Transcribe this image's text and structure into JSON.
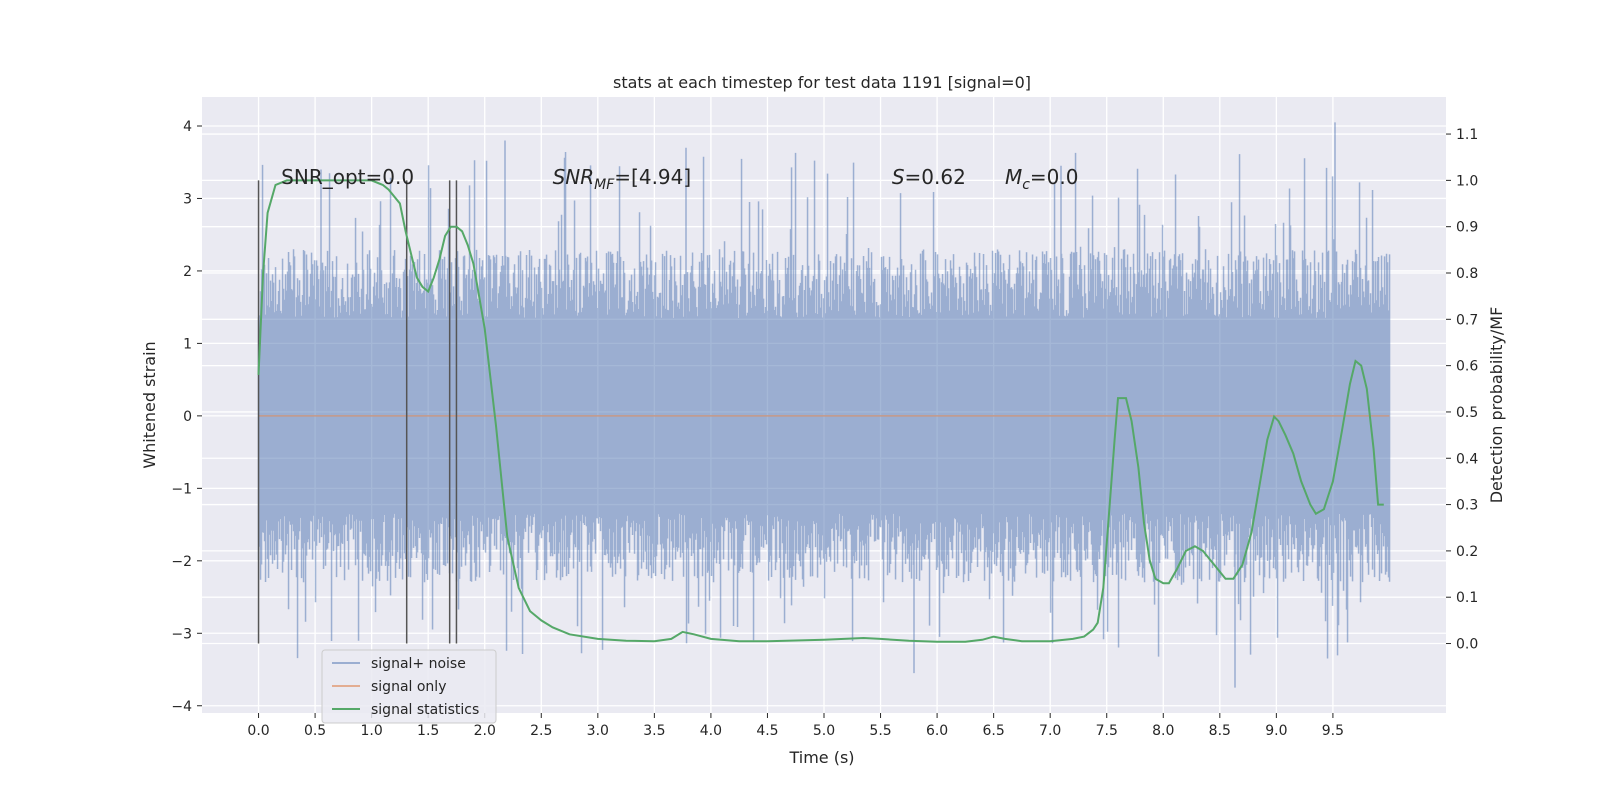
{
  "chart_data": {
    "type": "line",
    "title": "stats at each timestep for test data 1191 [signal=0]",
    "xlabel": "Time (s)",
    "ylabel": "Whitened strain",
    "y2label": "Detection probability/MF",
    "xlim": [
      -0.5,
      10.5
    ],
    "ylim": [
      -4.1,
      4.4
    ],
    "y2lim": [
      -0.15,
      1.18
    ],
    "xticks": [
      "0.0",
      "0.5",
      "1.0",
      "1.5",
      "2.0",
      "2.5",
      "3.0",
      "3.5",
      "4.0",
      "4.5",
      "5.0",
      "5.5",
      "6.0",
      "6.5",
      "7.0",
      "7.5",
      "8.0",
      "8.5",
      "9.0",
      "9.5"
    ],
    "yticks": [
      "−4",
      "−3",
      "−2",
      "−1",
      "0",
      "1",
      "2",
      "3",
      "4"
    ],
    "y2ticks": [
      "0.0",
      "0.1",
      "0.2",
      "0.3",
      "0.4",
      "0.5",
      "0.6",
      "0.7",
      "0.8",
      "0.9",
      "1.0",
      "1.1"
    ],
    "grid": true,
    "legend_position": "lower-left",
    "colors": {
      "background": "#eaeaf2",
      "grid": "#ffffff",
      "noise": "#4c72b0",
      "signal_only": "#dd8452",
      "statistics": "#55a868",
      "marker": "#555555"
    },
    "annotations": [
      {
        "text": "SNR_opt=0.0",
        "x": 0.2
      },
      {
        "text_main": "SNR",
        "text_sub": "MF",
        "text_rest": "=[4.94]",
        "x": 2.6
      },
      {
        "text_main": "S",
        "text_rest": "=0.62",
        "x": 5.6
      },
      {
        "text_main": "M",
        "text_sub": "c",
        "text_rest": "=0.0",
        "x": 6.6
      }
    ],
    "vertical_markers": [
      0.0,
      1.31,
      1.69,
      1.75
    ],
    "series": [
      {
        "name": "signal+ noise",
        "axis": "left",
        "t_start": 0.0,
        "t_end": 10.0,
        "band_min": -2.3,
        "band_max": 2.3,
        "peak_max": 4.05,
        "peak_min": -3.75
      },
      {
        "name": "signal only",
        "axis": "left",
        "x": [
          0.0,
          10.0
        ],
        "y": [
          0.0,
          0.0
        ]
      },
      {
        "name": "signal statistics",
        "axis": "right",
        "x": [
          0.0,
          0.04,
          0.08,
          0.15,
          0.25,
          0.4,
          0.6,
          0.8,
          1.0,
          1.1,
          1.15,
          1.25,
          1.3,
          1.35,
          1.4,
          1.45,
          1.5,
          1.55,
          1.6,
          1.65,
          1.7,
          1.75,
          1.8,
          1.85,
          1.9,
          1.95,
          2.0,
          2.1,
          2.2,
          2.3,
          2.4,
          2.5,
          2.6,
          2.75,
          3.0,
          3.25,
          3.5,
          3.65,
          3.75,
          3.85,
          4.0,
          4.25,
          4.5,
          5.0,
          5.35,
          5.5,
          5.75,
          6.0,
          6.25,
          6.4,
          6.5,
          6.6,
          6.75,
          7.0,
          7.2,
          7.3,
          7.38,
          7.42,
          7.47,
          7.52,
          7.57,
          7.6,
          7.63,
          7.67,
          7.72,
          7.78,
          7.83,
          7.88,
          7.93,
          8.0,
          8.05,
          8.12,
          8.2,
          8.28,
          8.35,
          8.45,
          8.55,
          8.62,
          8.7,
          8.78,
          8.85,
          8.92,
          8.98,
          9.02,
          9.08,
          9.15,
          9.22,
          9.3,
          9.35,
          9.42,
          9.5,
          9.58,
          9.65,
          9.7,
          9.75,
          9.8,
          9.86,
          9.9,
          9.95
        ],
        "y": [
          0.58,
          0.8,
          0.93,
          0.99,
          1.0,
          1.0,
          1.0,
          1.0,
          1.0,
          0.99,
          0.98,
          0.95,
          0.89,
          0.84,
          0.79,
          0.77,
          0.76,
          0.79,
          0.83,
          0.88,
          0.9,
          0.9,
          0.89,
          0.86,
          0.82,
          0.75,
          0.68,
          0.47,
          0.23,
          0.12,
          0.07,
          0.05,
          0.035,
          0.02,
          0.01,
          0.006,
          0.005,
          0.01,
          0.025,
          0.02,
          0.01,
          0.005,
          0.005,
          0.008,
          0.012,
          0.01,
          0.006,
          0.004,
          0.004,
          0.008,
          0.015,
          0.01,
          0.005,
          0.005,
          0.01,
          0.015,
          0.03,
          0.045,
          0.12,
          0.28,
          0.44,
          0.53,
          0.53,
          0.53,
          0.48,
          0.38,
          0.26,
          0.18,
          0.14,
          0.13,
          0.13,
          0.16,
          0.2,
          0.21,
          0.2,
          0.17,
          0.14,
          0.14,
          0.17,
          0.24,
          0.34,
          0.44,
          0.49,
          0.48,
          0.45,
          0.41,
          0.35,
          0.3,
          0.28,
          0.29,
          0.35,
          0.46,
          0.56,
          0.61,
          0.6,
          0.55,
          0.42,
          0.3,
          0.3
        ]
      }
    ]
  }
}
